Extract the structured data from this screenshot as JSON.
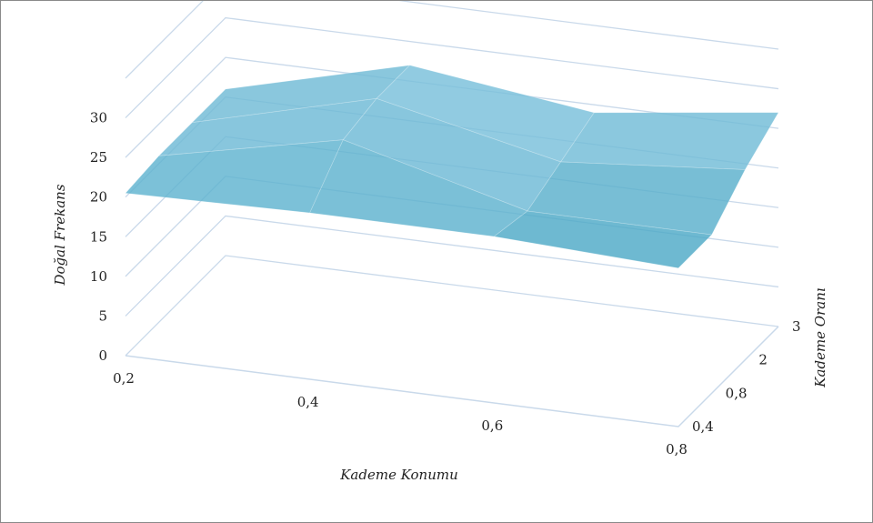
{
  "chart_data": {
    "type": "surface",
    "title": "",
    "xlabel": "Kademe Konumu",
    "ylabel": "Kademe Oranı",
    "zlabel": "Doğal Frekans",
    "x_ticks": [
      "0,2",
      "0,4",
      "0,6",
      "0,8"
    ],
    "y_ticks": [
      "0,4",
      "0,8",
      "2",
      "3"
    ],
    "z_ticks": [
      "0",
      "5",
      "10",
      "15",
      "20",
      "25",
      "30"
    ],
    "zlim": [
      0,
      35
    ],
    "x": [
      0.2,
      0.4,
      0.6,
      0.8
    ],
    "y": [
      "0,4",
      "0,8",
      "2",
      "3"
    ],
    "z": [
      [
        20.5,
        21,
        21,
        20
      ],
      [
        21,
        26,
        20,
        20
      ],
      [
        21,
        27,
        22,
        24
      ],
      [
        21,
        27,
        24,
        27
      ]
    ],
    "surface_color": "#3aaec8",
    "grid": true
  }
}
